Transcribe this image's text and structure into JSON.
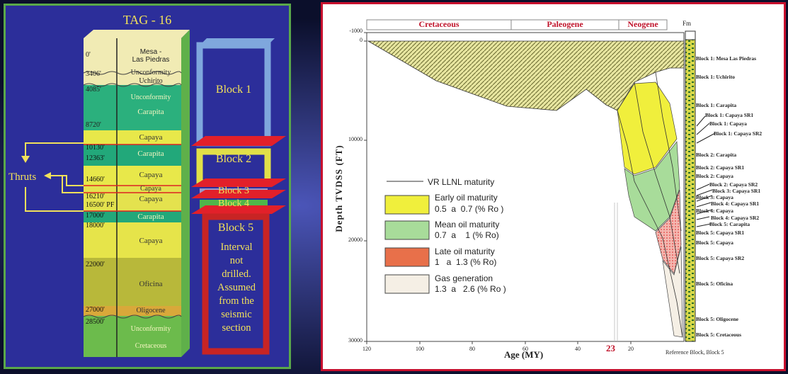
{
  "left_panel": {
    "title": "TAG - 16",
    "depths": [
      "0'",
      "3406'",
      "4085'",
      "8720'",
      "10130'",
      "12363'",
      "14660'",
      "16210'",
      "16500' PF",
      "17000'",
      "18000'",
      "22000'",
      "27000'",
      "28500'"
    ],
    "units": {
      "mesa": "Mesa -\nLas Piedras",
      "unconformity_1": "Unconformity",
      "uchirito": "Uchirito",
      "unconformity_2": "Unconformity",
      "carapita_1": "Carapita",
      "capaya_1": "Capaya",
      "carapita_2": "Carapita",
      "capaya_2": "Capaya",
      "capaya_3": "Capaya",
      "capaya_4": "Capaya",
      "carapita_3": "Carapita",
      "capaya_5": "Capaya",
      "oficina": "Oficina",
      "oligocene": "Oligocene",
      "unconformity_3": "Unconformity",
      "cretaceous": "Cretaceous"
    },
    "thrusts_label": "Thruts",
    "blocks": [
      "Block 1",
      "Block 2",
      "Block 3",
      "Block 4",
      "Block 5"
    ],
    "block5_note": [
      "Interval",
      "not",
      "drilled.",
      "Assumed",
      "from the",
      "seismic",
      "section"
    ],
    "colors": {
      "panel_bg": "#2c2e9a",
      "panel_border": "#5aa84a",
      "title": "#f2e15a"
    }
  },
  "right_panel": {
    "periods": [
      "Cretaceous",
      "Paleogene",
      "Neogene"
    ],
    "fm_label": "Fm",
    "y_axis_label": "Depth TVDSS (FT)",
    "x_axis_label": "Age (MY)",
    "x_ticks": [
      "120",
      "100",
      "80",
      "60",
      "40",
      "20"
    ],
    "y_ticks": [
      "-1000",
      "0",
      "10000",
      "20000",
      "30000"
    ],
    "highlight_age": "23",
    "reference_note": "Reference Block, Block 5",
    "legend": {
      "line_label": "VR LLNL maturity",
      "items": [
        {
          "name": "Early oil maturity",
          "range": "0.5  a  0.7 (% Ro )",
          "color": "#f0ef3c"
        },
        {
          "name": "Mean oil maturity",
          "range": "0.7  a    1 (% Ro)",
          "color": "#a8dc9a"
        },
        {
          "name": "Late oil maturity",
          "range": "1   a  1.3 (% Ro)",
          "color": "#e8704a"
        },
        {
          "name": "Gas generation",
          "range": "1.3  a   2.6 (% Ro )",
          "color": "#f5efe5"
        }
      ]
    },
    "fm_labels": [
      "Block 1: Mesa Las Piedras",
      "Block 1: Uchirito",
      "Block 1: Carapita",
      "Block 1: Capaya SR1",
      "Block 1: Capaya",
      "Block 1: Capaya SR2",
      "Block 2: Carapita",
      "Block 2: Capaya  SR1",
      "Block 2: Capaya",
      "Block 2: Capaya SR2",
      "Block 3: Capaya SR1",
      "Block 3: Capaya",
      "Block 4: Capaya SR1",
      "Block 4: Capaya",
      "Block 4: Capaya SR2",
      "Block 5: Carapita",
      "Block 5: Capaya SR1",
      "Block 5: Capaya",
      "Block 5: Capaya SR2",
      "Block 5: Oficina",
      "Block 5: Oligocene",
      "Block 5: Cretaceous"
    ],
    "colors": {
      "panel_border": "#c8102e",
      "period_text": "#c0142b"
    }
  }
}
